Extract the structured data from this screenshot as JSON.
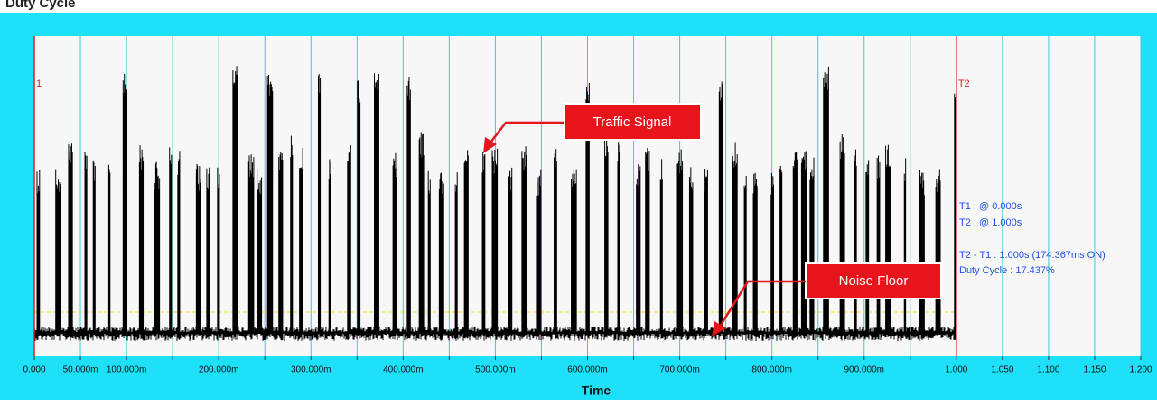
{
  "header": {
    "title": "Duty Cycle"
  },
  "plot": {
    "xlim": [
      0,
      1.2
    ],
    "xticks": [
      {
        "value": 0,
        "label": "0.000"
      },
      {
        "value": 0.05,
        "label": "50.000m"
      },
      {
        "value": 0.1,
        "label": "100.000m"
      },
      {
        "value": 0.15,
        "label": null
      },
      {
        "value": 0.2,
        "label": "200.000m"
      },
      {
        "value": 0.25,
        "label": null
      },
      {
        "value": 0.3,
        "label": "300.000m"
      },
      {
        "value": 0.35,
        "label": null
      },
      {
        "value": 0.4,
        "label": "400.000m"
      },
      {
        "value": 0.45,
        "label": null
      },
      {
        "value": 0.5,
        "label": "500.000m"
      },
      {
        "value": 0.55,
        "label": null
      },
      {
        "value": 0.6,
        "label": "600.000m"
      },
      {
        "value": 0.65,
        "label": null
      },
      {
        "value": 0.7,
        "label": "700.000m"
      },
      {
        "value": 0.75,
        "label": null
      },
      {
        "value": 0.8,
        "label": "800.000m"
      },
      {
        "value": 0.85,
        "label": null
      },
      {
        "value": 0.9,
        "label": "900.000m"
      },
      {
        "value": 0.95,
        "label": null
      },
      {
        "value": 1,
        "label": "1.000"
      },
      {
        "value": 1.05,
        "label": "1.050"
      },
      {
        "value": 1.1,
        "label": "1.100"
      },
      {
        "value": 1.15,
        "label": "1.150"
      },
      {
        "value": 1.2,
        "label": "1.200"
      }
    ],
    "x_label": "Time",
    "cursors": [
      {
        "label": "1",
        "value": 0
      },
      {
        "label": "T2",
        "value": 1
      }
    ],
    "info": [
      "T1 : @ 0.000s",
      "T2 : @ 1.000s",
      "T2 - T1 : 1.000s (174.367ms ON)",
      "Duty Cycle : 17.437%"
    ],
    "annotations": [
      "Traffic Signal",
      "Noise Floor"
    ]
  }
}
